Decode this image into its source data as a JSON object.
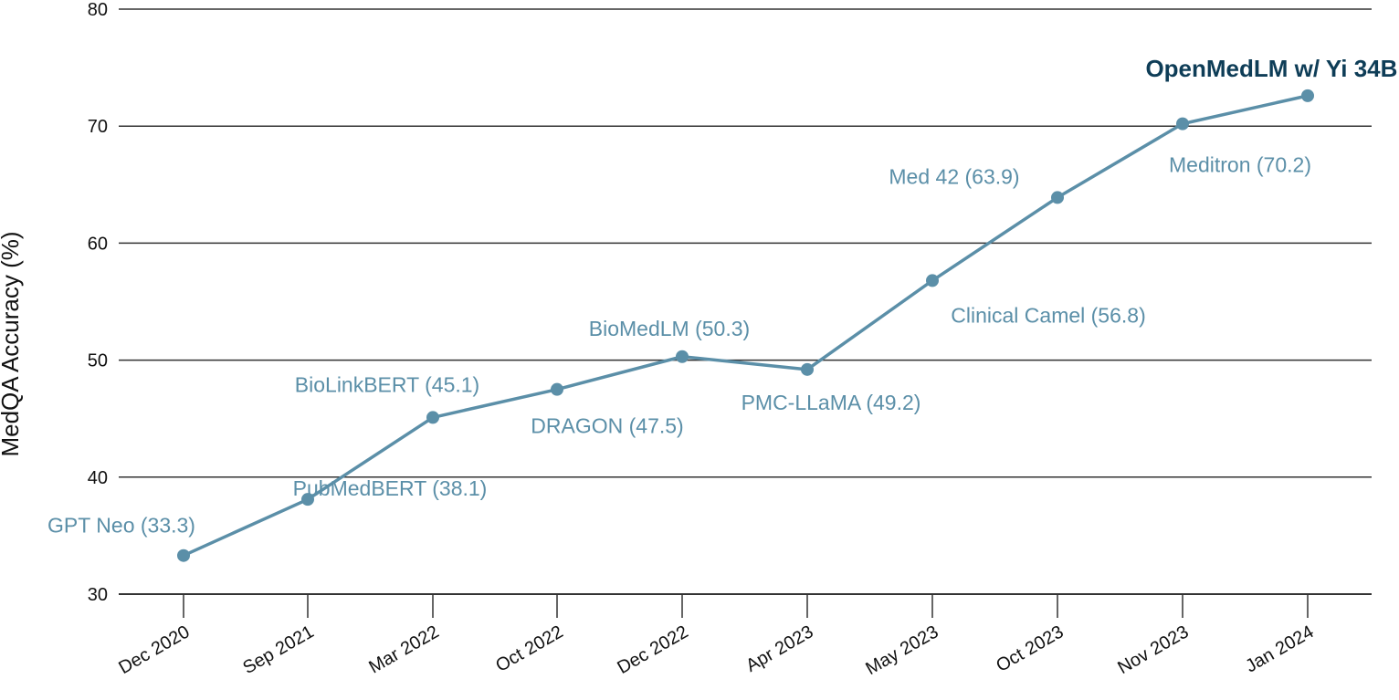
{
  "chart_data": {
    "type": "line",
    "title": "",
    "xlabel": "",
    "ylabel": "MedQA Accuracy (%)",
    "ylim": [
      30,
      80
    ],
    "yticks": [
      30,
      40,
      50,
      60,
      70,
      80
    ],
    "grid": true,
    "categories": [
      "Dec 2020",
      "Sep 2021",
      "Mar 2022",
      "Oct 2022",
      "Dec 2022",
      "Apr 2023",
      "May 2023",
      "Oct 2023",
      "Nov 2023",
      "Jan 2024"
    ],
    "values": [
      33.3,
      38.1,
      45.1,
      47.5,
      50.3,
      49.2,
      56.8,
      63.9,
      70.2,
      72.6
    ],
    "point_labels": [
      "GPT Neo (33.3)",
      "PubMedBERT (38.1)",
      "BioLinkBERT (45.1)",
      "DRAGON (47.5)",
      "BioMedLM (50.3)",
      "PMC-LLaMA (49.2)",
      "Clinical Camel (56.8)",
      "Med 42 (63.9)",
      "Meditron (70.2)",
      "OpenMedLM w/ Yi 34B (72.6)"
    ],
    "highlight_index": 9,
    "colors": {
      "line": "#5b8fa8",
      "label": "#5b8fa8",
      "highlight": "#0e3d57",
      "grid": "#333333"
    }
  }
}
